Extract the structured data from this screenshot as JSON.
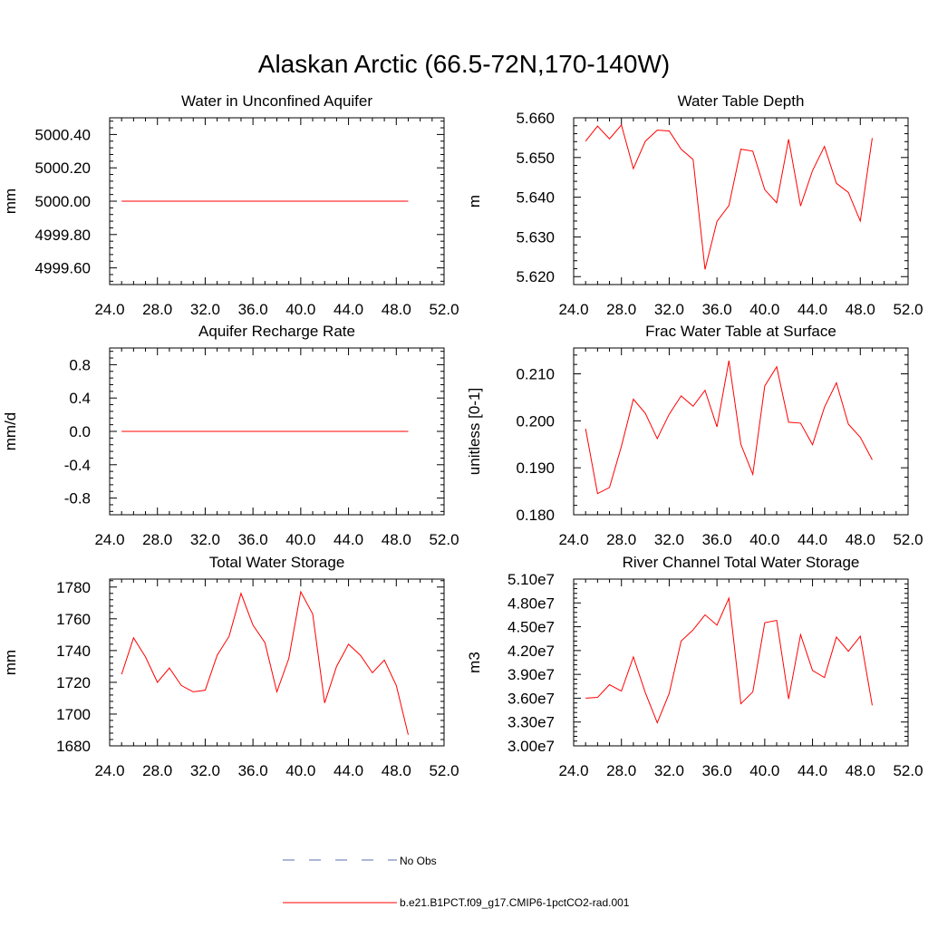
{
  "title": "Alaskan Arctic (66.5-72N,170-140W)",
  "legend": {
    "entries": [
      {
        "label": "No Obs",
        "style": "dashed",
        "color": "#5a6fb0"
      },
      {
        "label": "b.e21.B1PCT.f09_g17.CMIP6-1pctCO2-rad.001",
        "style": "solid",
        "color": "#ff0000"
      }
    ]
  },
  "chart_data": [
    {
      "type": "line",
      "title": "Water in Unconfined Aquifer",
      "ylabel": "mm",
      "xlim": [
        24,
        52
      ],
      "ylim": [
        4999.5,
        5000.5
      ],
      "xticks": [
        "24.0",
        "28.0",
        "32.0",
        "36.0",
        "40.0",
        "44.0",
        "48.0",
        "52.0"
      ],
      "xtick_values": [
        24,
        28,
        32,
        36,
        40,
        44,
        48,
        52
      ],
      "yticks": [
        "4999.60",
        "4999.80",
        "5000.00",
        "5000.20",
        "5000.40"
      ],
      "ytick_values": [
        4999.6,
        4999.8,
        5000.0,
        5000.2,
        5000.4
      ],
      "series": [
        {
          "color": "#ff0000",
          "x": [
            25,
            26,
            27,
            28,
            29,
            30,
            31,
            32,
            33,
            34,
            35,
            36,
            37,
            38,
            39,
            40,
            41,
            42,
            43,
            44,
            45,
            46,
            47,
            48,
            49
          ],
          "y": [
            5000,
            5000,
            5000,
            5000,
            5000,
            5000,
            5000,
            5000,
            5000,
            5000,
            5000,
            5000,
            5000,
            5000,
            5000,
            5000,
            5000,
            5000,
            5000,
            5000,
            5000,
            5000,
            5000,
            5000,
            5000
          ]
        }
      ]
    },
    {
      "type": "line",
      "title": "Water Table Depth",
      "ylabel": "m",
      "xlim": [
        24,
        52
      ],
      "ylim": [
        5.618,
        5.66
      ],
      "xticks": [
        "24.0",
        "28.0",
        "32.0",
        "36.0",
        "40.0",
        "44.0",
        "48.0",
        "52.0"
      ],
      "xtick_values": [
        24,
        28,
        32,
        36,
        40,
        44,
        48,
        52
      ],
      "yticks": [
        "5.620",
        "5.630",
        "5.640",
        "5.650",
        "5.660"
      ],
      "ytick_values": [
        5.62,
        5.63,
        5.64,
        5.65,
        5.66
      ],
      "series": [
        {
          "color": "#ff0000",
          "x": [
            25,
            26,
            27,
            28,
            29,
            30,
            31,
            32,
            33,
            34,
            35,
            36,
            37,
            38,
            39,
            40,
            41,
            42,
            43,
            44,
            45,
            46,
            47,
            48,
            49
          ],
          "y": [
            5.6541,
            5.6579,
            5.6547,
            5.6582,
            5.6472,
            5.6541,
            5.6569,
            5.6567,
            5.6521,
            5.6495,
            5.6218,
            5.6339,
            5.6379,
            5.6521,
            5.6516,
            5.6419,
            5.6386,
            5.6546,
            5.6378,
            5.6467,
            5.6528,
            5.6435,
            5.6412,
            5.634,
            5.6549
          ]
        }
      ]
    },
    {
      "type": "line",
      "title": "Aquifer Recharge Rate",
      "ylabel": "mm/d",
      "xlim": [
        24,
        52
      ],
      "ylim": [
        -1.0,
        1.0
      ],
      "xticks": [
        "24.0",
        "28.0",
        "32.0",
        "36.0",
        "40.0",
        "44.0",
        "48.0",
        "52.0"
      ],
      "xtick_values": [
        24,
        28,
        32,
        36,
        40,
        44,
        48,
        52
      ],
      "yticks": [
        "-0.8",
        "-0.4",
        "0.0",
        "0.4",
        "0.8"
      ],
      "ytick_values": [
        -0.8,
        -0.4,
        0.0,
        0.4,
        0.8
      ],
      "series": [
        {
          "color": "#ff0000",
          "x": [
            25,
            26,
            27,
            28,
            29,
            30,
            31,
            32,
            33,
            34,
            35,
            36,
            37,
            38,
            39,
            40,
            41,
            42,
            43,
            44,
            45,
            46,
            47,
            48,
            49
          ],
          "y": [
            0,
            0,
            0,
            0,
            0,
            0,
            0,
            0,
            0,
            0,
            0,
            0,
            0,
            0,
            0,
            0,
            0,
            0,
            0,
            0,
            0,
            0,
            0,
            0,
            0
          ]
        }
      ]
    },
    {
      "type": "line",
      "title": "Frac Water Table at Surface",
      "ylabel": "unitless [0-1]",
      "xlim": [
        24,
        52
      ],
      "ylim": [
        0.18,
        0.2155
      ],
      "xticks": [
        "24.0",
        "28.0",
        "32.0",
        "36.0",
        "40.0",
        "44.0",
        "48.0",
        "52.0"
      ],
      "xtick_values": [
        24,
        28,
        32,
        36,
        40,
        44,
        48,
        52
      ],
      "yticks": [
        "0.180",
        "0.190",
        "0.200",
        "0.210"
      ],
      "ytick_values": [
        0.18,
        0.19,
        0.2,
        0.21
      ],
      "series": [
        {
          "color": "#ff0000",
          "x": [
            25,
            26,
            27,
            28,
            29,
            30,
            31,
            32,
            33,
            34,
            35,
            36,
            37,
            38,
            39,
            40,
            41,
            42,
            43,
            44,
            45,
            46,
            47,
            48,
            49
          ],
          "y": [
            0.1983,
            0.1845,
            0.1858,
            0.1946,
            0.2046,
            0.2016,
            0.1962,
            0.2014,
            0.2053,
            0.2031,
            0.2065,
            0.1987,
            0.2128,
            0.195,
            0.1886,
            0.2074,
            0.2115,
            0.1997,
            0.1995,
            0.1949,
            0.2029,
            0.2081,
            0.1993,
            0.1965,
            0.1917
          ]
        }
      ]
    },
    {
      "type": "line",
      "title": "Total Water Storage",
      "ylabel": "mm",
      "xlim": [
        24,
        52
      ],
      "ylim": [
        1680,
        1785
      ],
      "xticks": [
        "24.0",
        "28.0",
        "32.0",
        "36.0",
        "40.0",
        "44.0",
        "48.0",
        "52.0"
      ],
      "xtick_values": [
        24,
        28,
        32,
        36,
        40,
        44,
        48,
        52
      ],
      "yticks": [
        "1680",
        "1700",
        "1720",
        "1740",
        "1760",
        "1780"
      ],
      "ytick_values": [
        1680,
        1700,
        1720,
        1740,
        1760,
        1780
      ],
      "series": [
        {
          "color": "#ff0000",
          "x": [
            25,
            26,
            27,
            28,
            29,
            30,
            31,
            32,
            33,
            34,
            35,
            36,
            37,
            38,
            39,
            40,
            41,
            42,
            43,
            44,
            45,
            46,
            47,
            48,
            49
          ],
          "y": [
            1725,
            1748,
            1736,
            1720,
            1729,
            1718,
            1714,
            1715,
            1737,
            1749,
            1776,
            1756,
            1745,
            1714,
            1735,
            1777,
            1763,
            1707,
            1730,
            1744,
            1737,
            1726,
            1734,
            1718,
            1687
          ]
        }
      ]
    },
    {
      "type": "line",
      "title": "River Channel Total Water Storage",
      "ylabel": "m3",
      "xlim": [
        24,
        52
      ],
      "ylim": [
        30000000,
        51000000
      ],
      "xticks": [
        "24.0",
        "28.0",
        "32.0",
        "36.0",
        "40.0",
        "44.0",
        "48.0",
        "52.0"
      ],
      "xtick_values": [
        24,
        28,
        32,
        36,
        40,
        44,
        48,
        52
      ],
      "yticks": [
        "3.00e7",
        "3.30e7",
        "3.60e7",
        "3.90e7",
        "4.20e7",
        "4.50e7",
        "4.80e7",
        "5.10e7"
      ],
      "ytick_values": [
        30000000,
        33000000,
        36000000,
        39000000,
        42000000,
        45000000,
        48000000,
        51000000
      ],
      "series": [
        {
          "color": "#ff0000",
          "x": [
            25,
            26,
            27,
            28,
            29,
            30,
            31,
            32,
            33,
            34,
            35,
            36,
            37,
            38,
            39,
            40,
            41,
            42,
            43,
            44,
            45,
            46,
            47,
            48,
            49
          ],
          "y": [
            36000000,
            36100000,
            37700000,
            36900000,
            41200000,
            36700000,
            32900000,
            36600000,
            43200000,
            44600000,
            46500000,
            45200000,
            48600000,
            35300000,
            36800000,
            45500000,
            45800000,
            35900000,
            44000000,
            39500000,
            38600000,
            43700000,
            41900000,
            43800000,
            35100000
          ]
        }
      ]
    }
  ]
}
